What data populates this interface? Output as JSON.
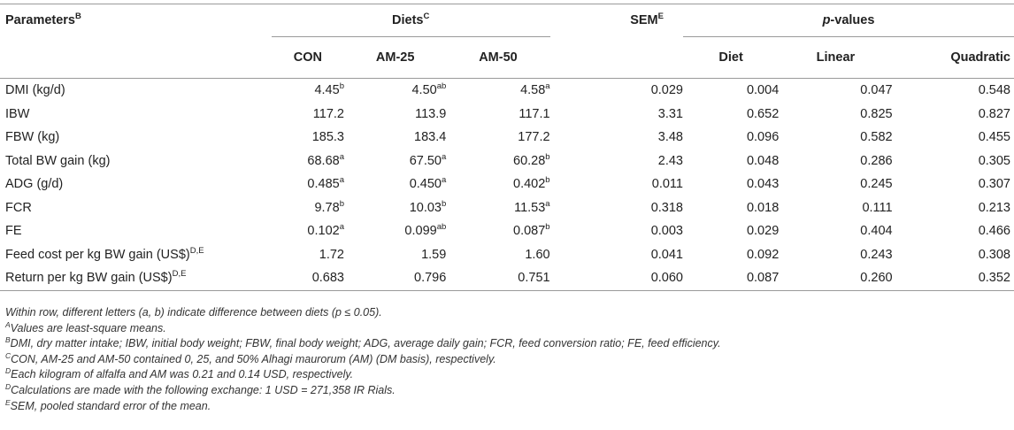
{
  "header": {
    "parameters": "Parameters",
    "parameters_sup": "B",
    "diets": "Diets",
    "diets_sup": "C",
    "sem": "SEM",
    "sem_sup": "E",
    "p_italic": "p",
    "p_rest": "-values",
    "con": "CON",
    "am25": "AM-25",
    "am50": "AM-50",
    "diet": "Diet",
    "linear": "Linear",
    "quadratic": "Quadratic"
  },
  "rows": [
    {
      "label": "DMI (kg/d)",
      "label_sup": "",
      "con": "4.45",
      "con_sup": "b",
      "am25": "4.50",
      "am25_sup": "ab",
      "am50": "4.58",
      "am50_sup": "a",
      "sem": "0.029",
      "diet": "0.004",
      "linear": "0.047",
      "quadratic": "0.548"
    },
    {
      "label": "IBW",
      "label_sup": "",
      "con": "117.2",
      "con_sup": "",
      "am25": "113.9",
      "am25_sup": "",
      "am50": "117.1",
      "am50_sup": "",
      "sem": "3.31",
      "diet": "0.652",
      "linear": "0.825",
      "quadratic": "0.827"
    },
    {
      "label": "FBW (kg)",
      "label_sup": "",
      "con": "185.3",
      "con_sup": "",
      "am25": "183.4",
      "am25_sup": "",
      "am50": "177.2",
      "am50_sup": "",
      "sem": "3.48",
      "diet": "0.096",
      "linear": "0.582",
      "quadratic": "0.455"
    },
    {
      "label": "Total BW gain (kg)",
      "label_sup": "",
      "con": "68.68",
      "con_sup": "a",
      "am25": "67.50",
      "am25_sup": "a",
      "am50": "60.28",
      "am50_sup": "b",
      "sem": "2.43",
      "diet": "0.048",
      "linear": "0.286",
      "quadratic": "0.305"
    },
    {
      "label": "ADG (g/d)",
      "label_sup": "",
      "con": "0.485",
      "con_sup": "a",
      "am25": "0.450",
      "am25_sup": "a",
      "am50": "0.402",
      "am50_sup": "b",
      "sem": "0.011",
      "diet": "0.043",
      "linear": "0.245",
      "quadratic": "0.307"
    },
    {
      "label": "FCR",
      "label_sup": "",
      "con": "9.78",
      "con_sup": "b",
      "am25": "10.03",
      "am25_sup": "b",
      "am50": "11.53",
      "am50_sup": "a",
      "sem": "0.318",
      "diet": "0.018",
      "linear": "0.111",
      "quadratic": "0.213"
    },
    {
      "label": "FE",
      "label_sup": "",
      "con": "0.102",
      "con_sup": "a",
      "am25": "0.099",
      "am25_sup": "ab",
      "am50": "0.087",
      "am50_sup": "b",
      "sem": "0.003",
      "diet": "0.029",
      "linear": "0.404",
      "quadratic": "0.466"
    },
    {
      "label": "Feed cost per kg BW gain (US$)",
      "label_sup": "D,E",
      "con": "1.72",
      "con_sup": "",
      "am25": "1.59",
      "am25_sup": "",
      "am50": "1.60",
      "am50_sup": "",
      "sem": "0.041",
      "diet": "0.092",
      "linear": "0.243",
      "quadratic": "0.308"
    },
    {
      "label": "Return per kg BW gain (US$)",
      "label_sup": "D,E",
      "con": "0.683",
      "con_sup": "",
      "am25": "0.796",
      "am25_sup": "",
      "am50": "0.751",
      "am50_sup": "",
      "sem": "0.060",
      "diet": "0.087",
      "linear": "0.260",
      "quadratic": "0.352"
    }
  ],
  "notes": [
    {
      "sup": "",
      "text": "Within row, different letters (a, b) indicate difference between diets (p ≤ 0.05)."
    },
    {
      "sup": "A",
      "text": "Values are least-square means."
    },
    {
      "sup": "B",
      "text": "DMI, dry matter intake; IBW, initial body weight; FBW, final body weight; ADG, average daily gain; FCR, feed conversion ratio; FE, feed efficiency."
    },
    {
      "sup": "C",
      "text": "CON, AM-25 and AM-50 contained 0, 25, and 50% Alhagi maurorum (AM) (DM basis), respectively."
    },
    {
      "sup": "D",
      "text": "Each kilogram of alfalfa and AM was 0.21 and 0.14 USD, respectively."
    },
    {
      "sup": "D",
      "text": "Calculations are made with the following exchange: 1 USD = 271,358 IR Rials."
    },
    {
      "sup": "E",
      "text": "SEM, pooled standard error of the mean."
    }
  ]
}
